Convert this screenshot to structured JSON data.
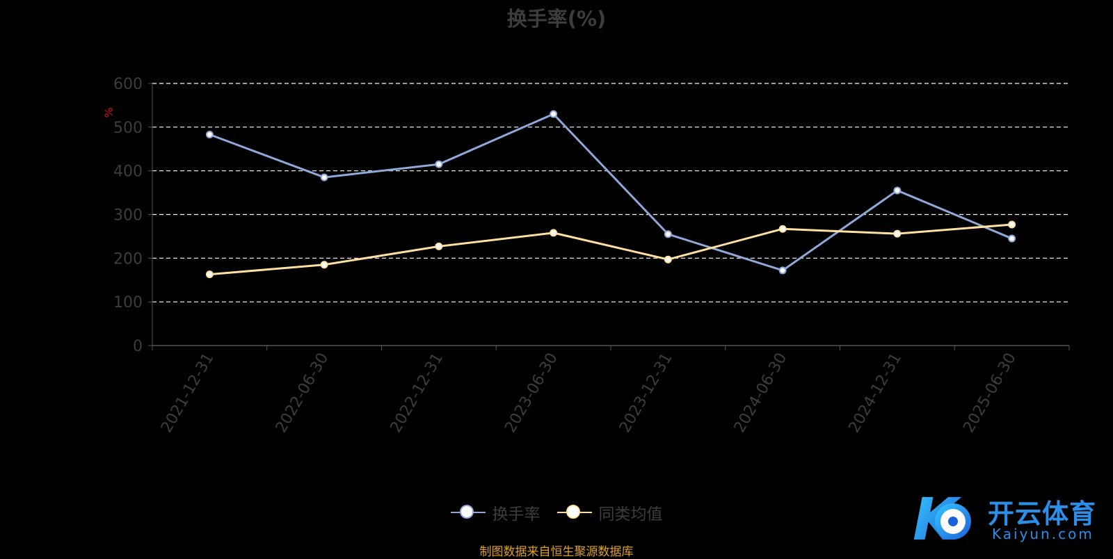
{
  "chart_data": {
    "type": "line",
    "title": "换手率(%)",
    "ylabel": "%",
    "categories": [
      "2021-12-31",
      "2022-06-30",
      "2022-12-31",
      "2023-06-30",
      "2023-12-31",
      "2024-06-30",
      "2024-12-31",
      "2025-06-30"
    ],
    "yticks": [
      "0",
      "100",
      "200",
      "300",
      "400",
      "500",
      "600"
    ],
    "ylim": [
      0,
      600
    ],
    "grid": true,
    "legend_position": "bottom",
    "series": [
      {
        "name": "换手率",
        "color": "#8fa8d8",
        "values": [
          483,
          385,
          415,
          530,
          255,
          172,
          355,
          245
        ]
      },
      {
        "name": "同类均值",
        "color": "#ffe0a0",
        "values": [
          163,
          185,
          227,
          258,
          197,
          267,
          256,
          277
        ]
      }
    ]
  },
  "source_note": "制图数据来自恒生聚源数据库",
  "logo": {
    "cn": "开云体育",
    "en": "Kaiyun.com",
    "mark_letter": "K"
  }
}
